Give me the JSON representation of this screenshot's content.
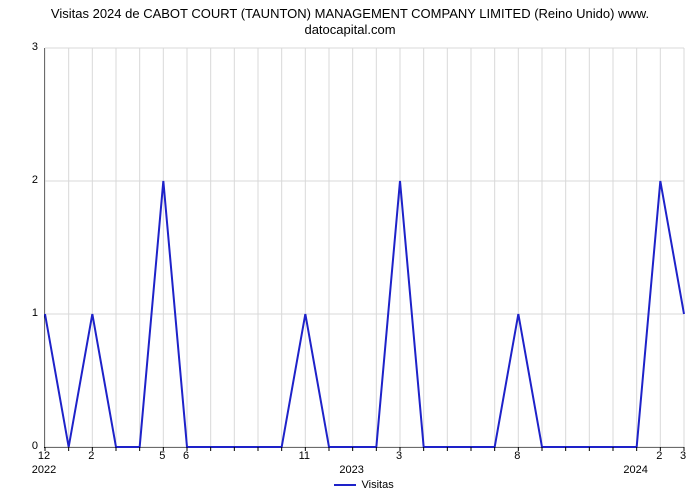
{
  "title_line1": "Visitas 2024 de CABOT COURT (TAUNTON) MANAGEMENT COMPANY LIMITED (Reino Unido) www.",
  "title_line2": "datocapital.com",
  "chart": {
    "type": "line",
    "background_color": "#ffffff",
    "grid_color": "#d9d9d9",
    "axis_color": "#000000",
    "title_fontsize": 13,
    "label_fontsize": 11,
    "line_color": "#1e22c9",
    "line_width": 2,
    "ylim": [
      0,
      3
    ],
    "ytick_step": 1,
    "y_ticks": [
      0,
      1,
      2,
      3
    ],
    "n_points": 28,
    "x_tick_labels_top": [
      "12",
      "",
      "2",
      "",
      "",
      "5",
      "6",
      "",
      "",
      "",
      "",
      "11",
      "",
      "",
      "",
      "3",
      "",
      "",
      "",
      "",
      "8",
      "",
      "",
      "",
      "",
      "",
      "2",
      "3"
    ],
    "x_tick_labels_bottom": [
      "2022",
      "",
      "",
      "",
      "",
      "",
      "",
      "",
      "",
      "",
      "",
      "",
      "",
      "2023",
      "",
      "",
      "",
      "",
      "",
      "",
      "",
      "",
      "",
      "",
      "",
      "2024",
      "",
      ""
    ],
    "values": [
      1,
      0,
      1,
      0,
      0,
      2,
      0,
      0,
      0,
      0,
      0,
      1,
      0,
      0,
      0,
      2,
      0,
      0,
      0,
      0,
      1,
      0,
      0,
      0,
      0,
      0,
      2,
      1
    ],
    "legend_label": "Visitas"
  }
}
